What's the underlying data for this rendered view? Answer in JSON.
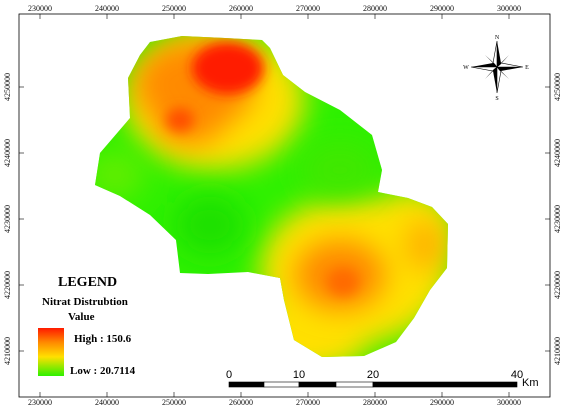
{
  "map": {
    "x_ticks": [
      "230000",
      "240000",
      "250000",
      "260000",
      "270000",
      "280000",
      "290000",
      "300000"
    ],
    "y_ticks": [
      "4250000",
      "4240000",
      "4230000",
      "4220000",
      "4210000"
    ],
    "colors": {
      "high": "#ff1a00",
      "mid_high": "#ff8a00",
      "mid": "#ffe000",
      "low": "#2ef000",
      "frame": "#000000"
    }
  },
  "legend": {
    "title": "LEGEND",
    "subtitle_line1": "Nitrat Distrubtion",
    "subtitle_line2": "Value",
    "high_label": "High : 150.6",
    "low_label": "Low : 20.7114"
  },
  "scale_bar": {
    "labels": [
      "0",
      "10",
      "20",
      "40"
    ],
    "unit": "Km"
  },
  "north_arrow": {
    "n": "N",
    "s": "S",
    "e": "E",
    "w": "W"
  }
}
